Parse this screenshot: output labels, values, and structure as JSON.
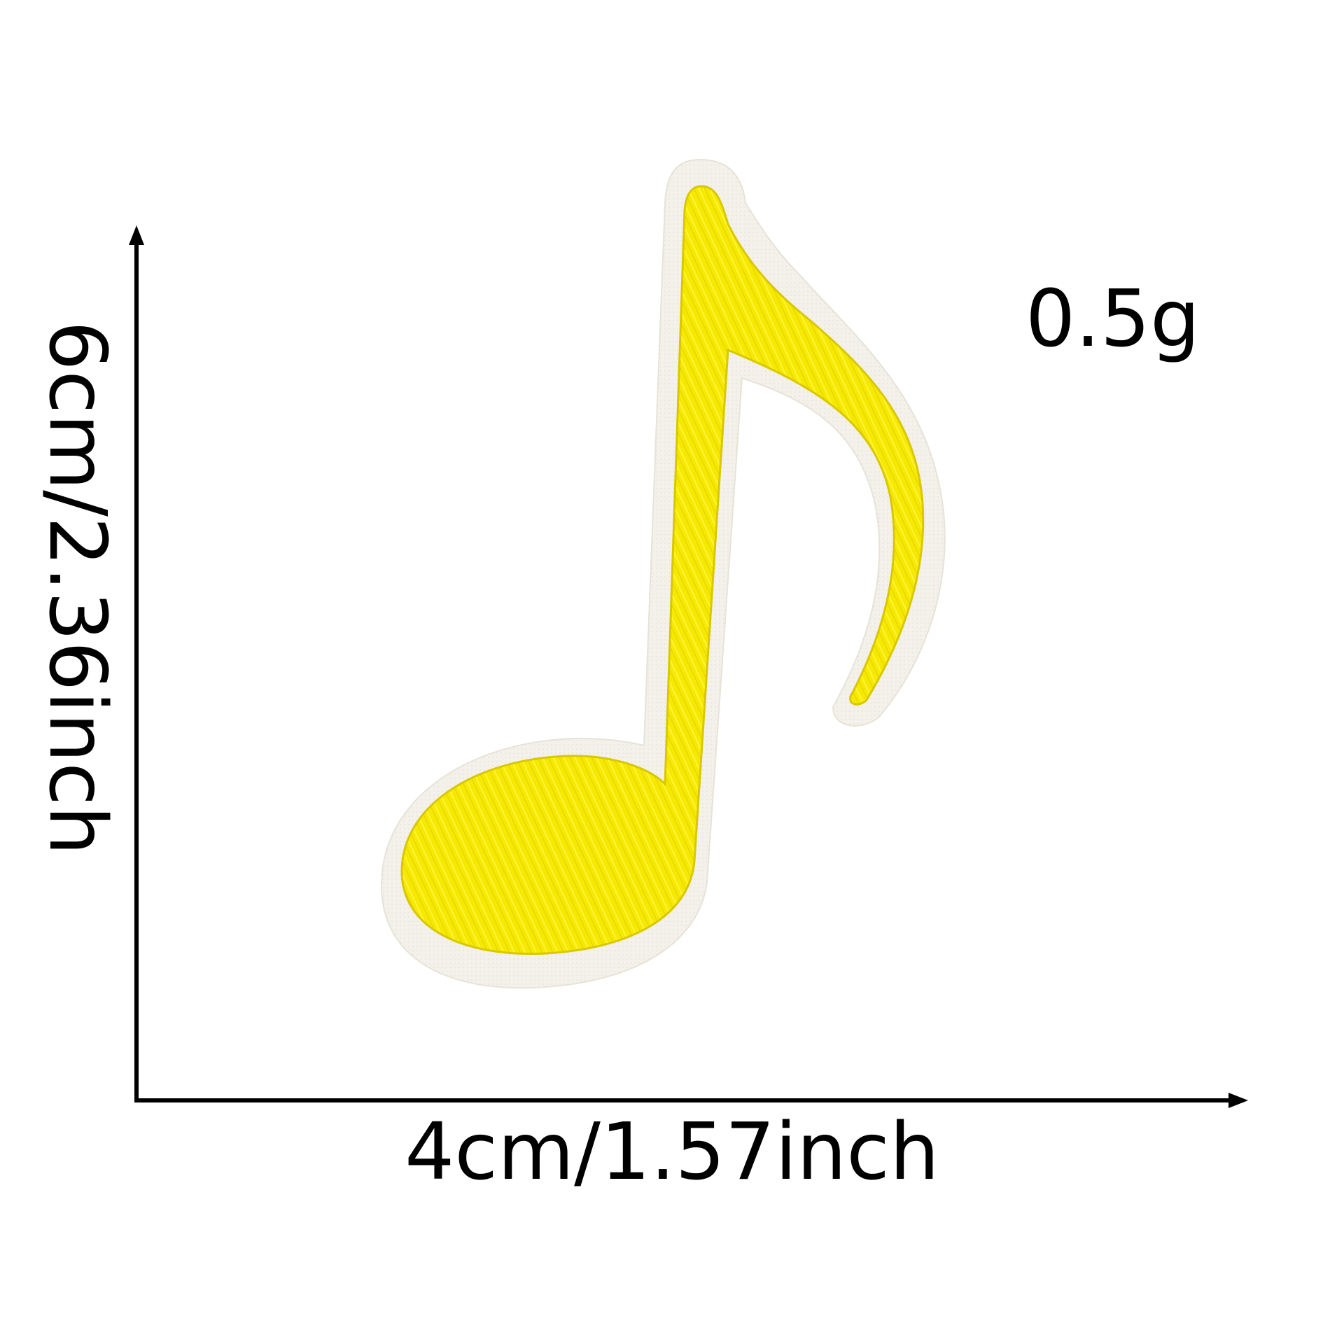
{
  "product": {
    "name": "music-note-embroidered-patch",
    "patch_color": "#F6E900",
    "backing_color": "#F3F1EA"
  },
  "dimensions": {
    "width_label": "4cm/1.57inch",
    "height_label": "6cm/2.36inch",
    "weight_label": "0.5g"
  },
  "arrows": {
    "color": "#000000"
  }
}
